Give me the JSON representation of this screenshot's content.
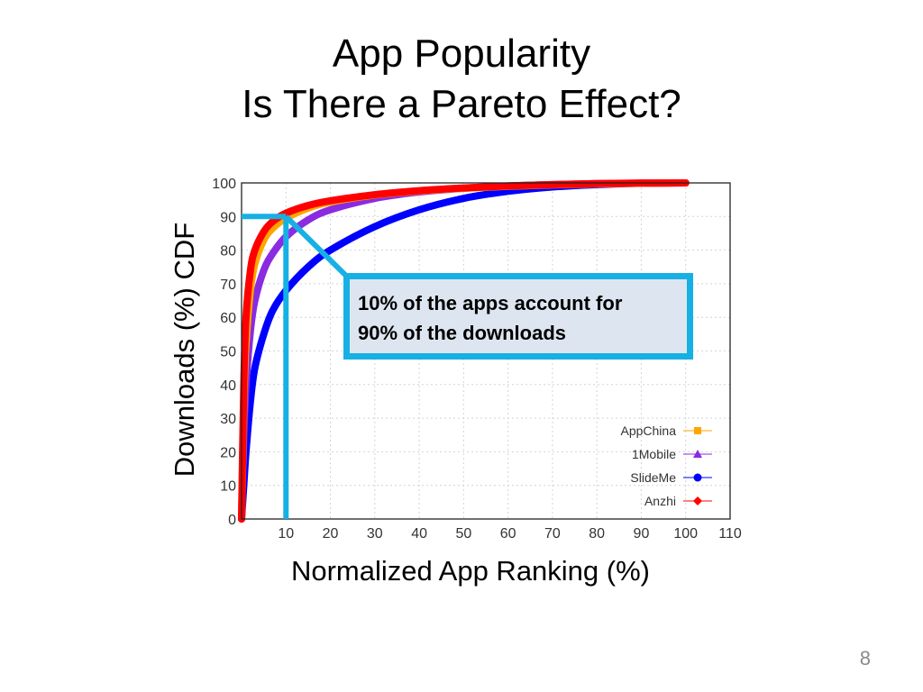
{
  "slide": {
    "title_line1": "App Popularity",
    "title_line2": "Is There a Pareto Effect?",
    "page_number": "8"
  },
  "callout": {
    "line1": "10% of the apps account for",
    "line2": "90% of the downloads",
    "highlight_point": {
      "x": 10,
      "y": 90
    },
    "color": "#16b0e4",
    "background": "#dde6f0"
  },
  "chart_data": {
    "type": "line",
    "title": "",
    "xlabel": "Normalized App Ranking (%)",
    "ylabel": "Downloads (%) CDF",
    "xlim": [
      0,
      110
    ],
    "ylim": [
      0,
      100
    ],
    "x_ticks": [
      10,
      20,
      30,
      40,
      50,
      60,
      70,
      80,
      90,
      100,
      110
    ],
    "y_ticks": [
      0,
      10,
      20,
      30,
      40,
      50,
      60,
      70,
      80,
      90,
      100
    ],
    "grid": true,
    "legend_position": "bottom-right",
    "series": [
      {
        "name": "AppChina",
        "color": "#ffa500",
        "marker": "square",
        "x": [
          0,
          0.5,
          1,
          2,
          3,
          5,
          7,
          10,
          15,
          20,
          30,
          40,
          50,
          60,
          70,
          80,
          90,
          100
        ],
        "y": [
          0,
          35,
          52,
          68,
          76,
          83,
          86.5,
          89.5,
          92.5,
          94.3,
          96.4,
          97.6,
          98.4,
          99,
          99.4,
          99.7,
          99.9,
          100
        ]
      },
      {
        "name": "1Mobile",
        "color": "#8a2be2",
        "marker": "triangle",
        "x": [
          0,
          0.5,
          1,
          2,
          3,
          5,
          7,
          10,
          15,
          20,
          30,
          40,
          50,
          60,
          70,
          80,
          90,
          100
        ],
        "y": [
          0,
          25,
          40,
          56,
          65,
          74,
          79,
          84,
          89,
          92,
          95.4,
          97.3,
          98.4,
          99.1,
          99.5,
          99.8,
          99.9,
          100
        ]
      },
      {
        "name": "SlideMe",
        "color": "#0000ff",
        "marker": "circle",
        "x": [
          0,
          0.5,
          1,
          2,
          3,
          5,
          7,
          10,
          15,
          20,
          30,
          40,
          50,
          60,
          70,
          80,
          90,
          100
        ],
        "y": [
          0,
          10,
          20,
          35,
          45,
          55,
          62,
          68,
          75,
          80,
          87,
          92,
          95.4,
          97.5,
          98.8,
          99.5,
          99.9,
          100
        ]
      },
      {
        "name": "Anzhi",
        "color": "#ff0000",
        "marker": "diamond",
        "x": [
          0,
          0.5,
          1,
          2,
          3,
          5,
          7,
          10,
          15,
          20,
          30,
          40,
          50,
          60,
          70,
          80,
          90,
          100
        ],
        "y": [
          0,
          40,
          60,
          74,
          80,
          85.5,
          88.5,
          91,
          93.3,
          94.7,
          96.5,
          97.7,
          98.5,
          99.1,
          99.5,
          99.8,
          99.95,
          100
        ]
      }
    ]
  }
}
